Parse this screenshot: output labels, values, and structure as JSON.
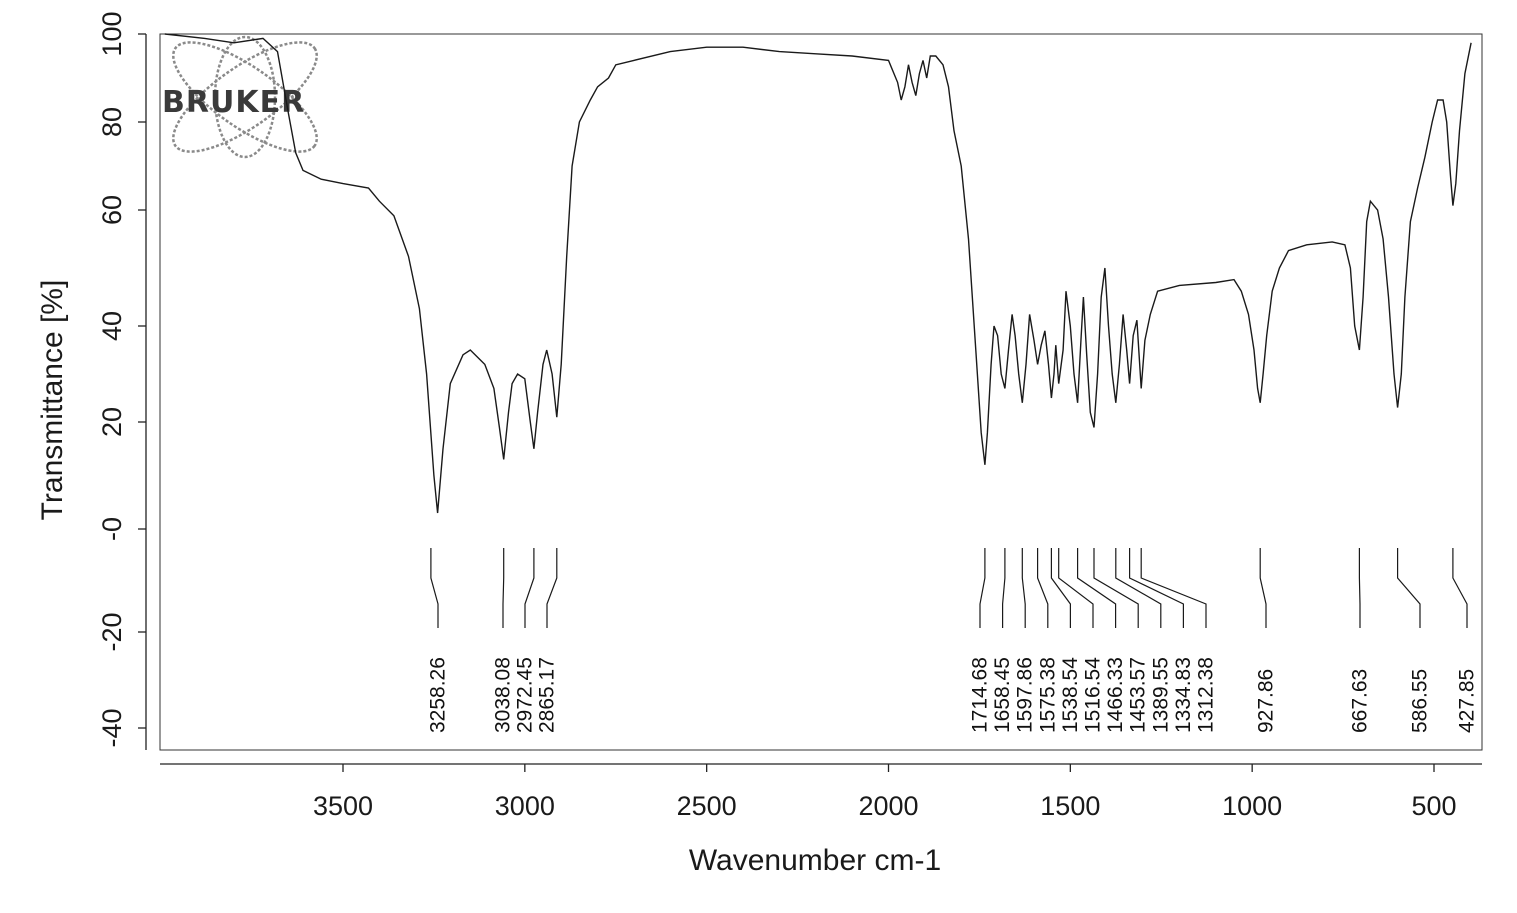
{
  "chart_data": {
    "type": "line",
    "xlabel": "Wavenumber cm-1",
    "ylabel": "Transmittance [%]",
    "xlim": [
      3990,
      380
    ],
    "ylim": [
      -45,
      100
    ],
    "x_ticks": [
      3500,
      3000,
      2500,
      2000,
      1500,
      1000,
      500
    ],
    "y_ticks": [
      100,
      80,
      60,
      40,
      20,
      0,
      -20,
      -40
    ],
    "y_tick_labels": [
      "100",
      "80",
      "60",
      "40",
      "20",
      "-0",
      "-20",
      "-40"
    ],
    "logo_text": "BRUKER",
    "series": [
      {
        "points": [
          [
            3990,
            100
          ],
          [
            3880,
            99
          ],
          [
            3800,
            98
          ],
          [
            3720,
            99
          ],
          [
            3680,
            96
          ],
          [
            3650,
            82
          ],
          [
            3630,
            73
          ],
          [
            3610,
            69
          ],
          [
            3560,
            67
          ],
          [
            3500,
            66
          ],
          [
            3430,
            65
          ],
          [
            3400,
            62
          ],
          [
            3360,
            59
          ],
          [
            3320,
            52
          ],
          [
            3290,
            43
          ],
          [
            3270,
            30
          ],
          [
            3250,
            10
          ],
          [
            3240,
            3
          ],
          [
            3225,
            15
          ],
          [
            3205,
            28
          ],
          [
            3170,
            34
          ],
          [
            3150,
            35
          ],
          [
            3110,
            32
          ],
          [
            3085,
            27
          ],
          [
            3070,
            19
          ],
          [
            3058,
            13
          ],
          [
            3045,
            22
          ],
          [
            3035,
            28
          ],
          [
            3020,
            30
          ],
          [
            3000,
            29
          ],
          [
            2985,
            20
          ],
          [
            2975,
            15
          ],
          [
            2965,
            22
          ],
          [
            2950,
            32
          ],
          [
            2940,
            35
          ],
          [
            2925,
            30
          ],
          [
            2912,
            21
          ],
          [
            2900,
            32
          ],
          [
            2885,
            52
          ],
          [
            2870,
            70
          ],
          [
            2850,
            80
          ],
          [
            2820,
            85
          ],
          [
            2800,
            88
          ],
          [
            2770,
            90
          ],
          [
            2750,
            93
          ],
          [
            2700,
            94
          ],
          [
            2600,
            96
          ],
          [
            2500,
            97
          ],
          [
            2400,
            97
          ],
          [
            2300,
            96
          ],
          [
            2200,
            95.5
          ],
          [
            2100,
            95
          ],
          [
            2000,
            94
          ],
          [
            1975,
            89
          ],
          [
            1965,
            85
          ],
          [
            1955,
            88
          ],
          [
            1945,
            93
          ],
          [
            1935,
            89
          ],
          [
            1925,
            86
          ],
          [
            1915,
            91
          ],
          [
            1905,
            94
          ],
          [
            1895,
            90
          ],
          [
            1885,
            95
          ],
          [
            1870,
            95
          ],
          [
            1850,
            93
          ],
          [
            1835,
            88
          ],
          [
            1820,
            78
          ],
          [
            1800,
            70
          ],
          [
            1780,
            55
          ],
          [
            1760,
            35
          ],
          [
            1745,
            18
          ],
          [
            1735,
            12
          ],
          [
            1728,
            18
          ],
          [
            1718,
            32
          ],
          [
            1710,
            40
          ],
          [
            1700,
            38
          ],
          [
            1690,
            30
          ],
          [
            1680,
            27
          ],
          [
            1670,
            35
          ],
          [
            1660,
            42
          ],
          [
            1652,
            38
          ],
          [
            1642,
            30
          ],
          [
            1632,
            24
          ],
          [
            1622,
            32
          ],
          [
            1612,
            42
          ],
          [
            1600,
            37
          ],
          [
            1590,
            32
          ],
          [
            1580,
            36
          ],
          [
            1570,
            39
          ],
          [
            1560,
            32
          ],
          [
            1552,
            25
          ],
          [
            1545,
            30
          ],
          [
            1540,
            36
          ],
          [
            1532,
            28
          ],
          [
            1520,
            35
          ],
          [
            1512,
            46
          ],
          [
            1500,
            40
          ],
          [
            1490,
            30
          ],
          [
            1480,
            24
          ],
          [
            1470,
            38
          ],
          [
            1464,
            45
          ],
          [
            1455,
            34
          ],
          [
            1445,
            22
          ],
          [
            1435,
            19
          ],
          [
            1425,
            30
          ],
          [
            1415,
            45
          ],
          [
            1405,
            50
          ],
          [
            1395,
            40
          ],
          [
            1385,
            30
          ],
          [
            1375,
            24
          ],
          [
            1365,
            32
          ],
          [
            1355,
            42
          ],
          [
            1345,
            35
          ],
          [
            1337,
            28
          ],
          [
            1327,
            38
          ],
          [
            1317,
            41
          ],
          [
            1305,
            27
          ],
          [
            1295,
            37
          ],
          [
            1280,
            42
          ],
          [
            1260,
            46
          ],
          [
            1200,
            47
          ],
          [
            1100,
            47.5
          ],
          [
            1050,
            48
          ],
          [
            1030,
            46
          ],
          [
            1010,
            42
          ],
          [
            995,
            35
          ],
          [
            985,
            27
          ],
          [
            978,
            24
          ],
          [
            970,
            30
          ],
          [
            960,
            38
          ],
          [
            945,
            46
          ],
          [
            925,
            50
          ],
          [
            900,
            53
          ],
          [
            850,
            54
          ],
          [
            780,
            54.5
          ],
          [
            745,
            54
          ],
          [
            730,
            50
          ],
          [
            718,
            40
          ],
          [
            705,
            35
          ],
          [
            695,
            45
          ],
          [
            685,
            58
          ],
          [
            675,
            62
          ],
          [
            655,
            60
          ],
          [
            640,
            55
          ],
          [
            625,
            45
          ],
          [
            610,
            30
          ],
          [
            600,
            23
          ],
          [
            590,
            30
          ],
          [
            580,
            45
          ],
          [
            565,
            58
          ],
          [
            545,
            65
          ],
          [
            525,
            72
          ],
          [
            505,
            80
          ],
          [
            490,
            85
          ],
          [
            475,
            85
          ],
          [
            465,
            80
          ],
          [
            455,
            68
          ],
          [
            448,
            61
          ],
          [
            440,
            66
          ],
          [
            430,
            78
          ],
          [
            415,
            91
          ],
          [
            398,
            98
          ]
        ]
      }
    ],
    "peaks": [
      {
        "x": 3258.26,
        "label": "3258.26",
        "drawn_at": 3258.26
      },
      {
        "x": 3038.08,
        "label": "3038.08",
        "drawn_at": 3058
      },
      {
        "x": 2972.45,
        "label": "2972.45",
        "drawn_at": 2975
      },
      {
        "x": 2865.17,
        "label": "2865.17",
        "drawn_at": 2912
      },
      {
        "x": 1714.68,
        "label": "1714.68",
        "drawn_at": 1735
      },
      {
        "x": 1658.45,
        "label": "1658.45",
        "drawn_at": 1680
      },
      {
        "x": 1597.86,
        "label": "1597.86",
        "drawn_at": 1632
      },
      {
        "x": 1575.38,
        "label": "1575.38",
        "drawn_at": 1590
      },
      {
        "x": 1538.54,
        "label": "1538.54",
        "drawn_at": 1552
      },
      {
        "x": 1516.54,
        "label": "1516.54",
        "drawn_at": 1532
      },
      {
        "x": 1466.33,
        "label": "1466.33",
        "drawn_at": 1480
      },
      {
        "x": 1453.57,
        "label": "1453.57",
        "drawn_at": 1435
      },
      {
        "x": 1389.55,
        "label": "1389.55",
        "drawn_at": 1375
      },
      {
        "x": 1334.83,
        "label": "1334.83",
        "drawn_at": 1337
      },
      {
        "x": 1312.38,
        "label": "1312.38",
        "drawn_at": 1305
      },
      {
        "x": 927.86,
        "label": "927.86",
        "drawn_at": 978
      },
      {
        "x": 667.63,
        "label": "667.63",
        "drawn_at": 705
      },
      {
        "x": 586.55,
        "label": "586.55",
        "drawn_at": 600
      },
      {
        "x": 427.85,
        "label": "427.85",
        "drawn_at": 448
      }
    ]
  }
}
